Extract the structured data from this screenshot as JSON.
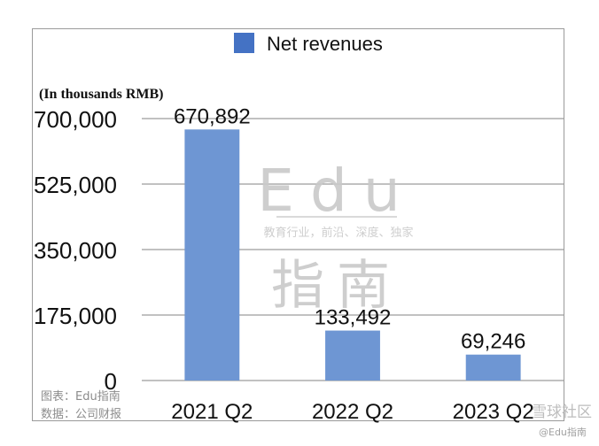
{
  "chart_data": {
    "type": "bar",
    "categories": [
      "2021 Q2",
      "2022 Q2",
      "2023 Q2"
    ],
    "series": [
      {
        "name": "Net revenues",
        "values": [
          670892,
          133492,
          69246
        ],
        "color": "#6e96d3"
      }
    ],
    "data_labels": [
      "670,892",
      "133,492",
      "69,246"
    ],
    "ylabel": "(In thousands RMB)",
    "ylim": [
      0,
      700000
    ],
    "yticks": [
      0,
      175000,
      350000,
      525000,
      700000
    ],
    "ytick_labels": [
      "0",
      "175,000",
      "350,000",
      "525,000",
      "700,000"
    ],
    "grid": true,
    "legend_position": "top-center",
    "legend_color": "#4472c4"
  },
  "watermark": {
    "brand_latin": "Edu",
    "tagline": "教育行业，前沿、深度、独家",
    "brand_chinese": "指南"
  },
  "footer": {
    "chart_credit": "图表：Edu指南",
    "data_source": "数据：公司财报",
    "platform_mark": "雪球社区",
    "platform_credit": "@Edu指南"
  }
}
